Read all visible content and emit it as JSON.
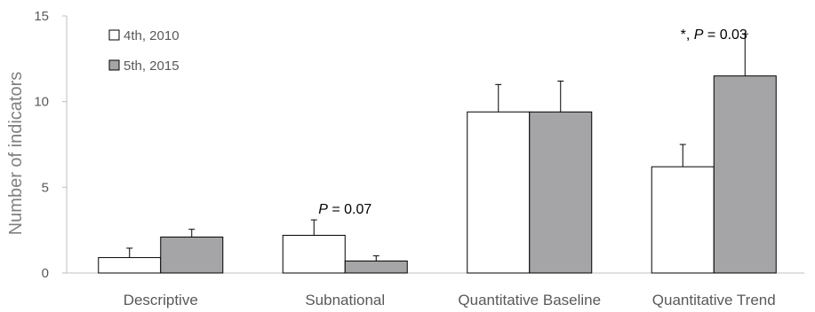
{
  "chart_data": {
    "type": "bar",
    "ylabel": "Number of indicators",
    "xlabel": "",
    "title": "",
    "ylim": [
      0,
      15
    ],
    "yticks": [
      0,
      5,
      10,
      15
    ],
    "grid": false,
    "legend_position": "top-left",
    "categories": [
      "Descriptive",
      "Subnational",
      "Quantitative Baseline",
      "Quantitative Trend"
    ],
    "series": [
      {
        "name": "4th, 2010",
        "color": "#ffffff",
        "values": [
          0.9,
          2.2,
          9.4,
          6.2
        ],
        "error": [
          0.55,
          0.9,
          1.6,
          1.3
        ]
      },
      {
        "name": "5th, 2015",
        "color": "#a5a5a7",
        "values": [
          2.1,
          0.7,
          9.4,
          11.5
        ],
        "error": [
          0.45,
          0.3,
          1.8,
          2.45
        ]
      }
    ],
    "annotations": [
      {
        "category": "Subnational",
        "parts": [
          {
            "text": "P",
            "italic": true
          },
          {
            "text": " = 0.07",
            "italic": false
          }
        ]
      },
      {
        "category": "Quantitative Trend",
        "parts": [
          {
            "text": "*,  ",
            "italic": false
          },
          {
            "text": "P",
            "italic": true
          },
          {
            "text": " = 0.03",
            "italic": false
          }
        ]
      }
    ]
  }
}
